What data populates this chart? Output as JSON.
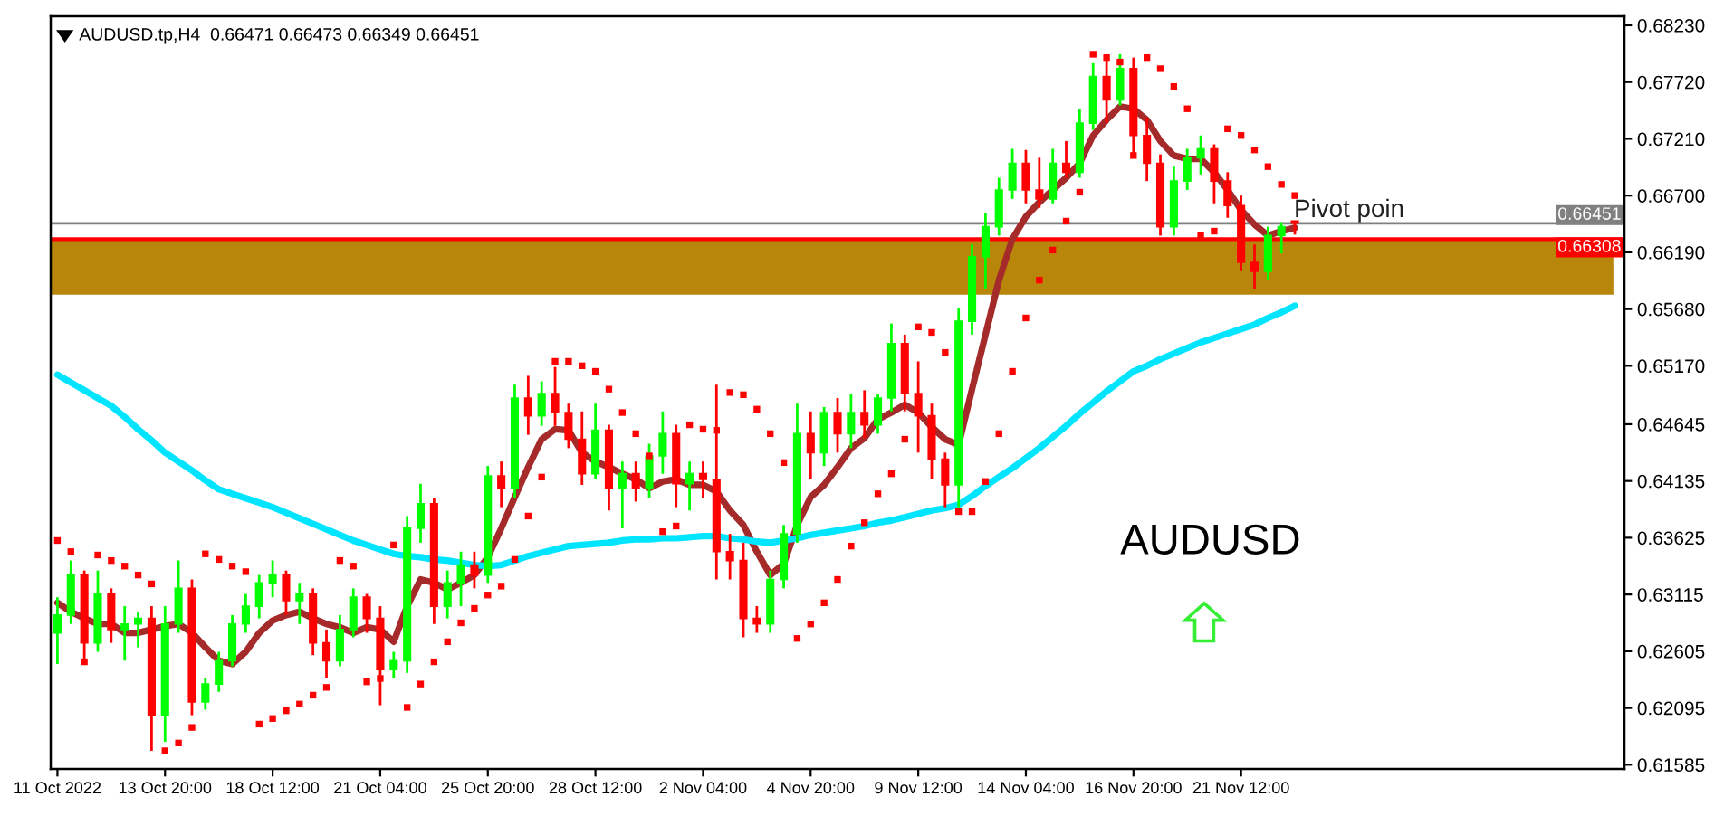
{
  "chart_data": {
    "type": "candlestick",
    "title": "AUDUSD.tp,H4  0.66471 0.66473 0.66349 0.66451",
    "categories": [
      "11 Oct 2022",
      null,
      null,
      null,
      null,
      null,
      null,
      null,
      "13 Oct 20:00",
      null,
      null,
      null,
      null,
      null,
      null,
      null,
      "18 Oct 12:00",
      null,
      null,
      null,
      null,
      null,
      null,
      null,
      "21 Oct 04:00",
      null,
      null,
      null,
      null,
      null,
      null,
      null,
      "25 Oct 20:00",
      null,
      null,
      null,
      null,
      null,
      null,
      null,
      "28 Oct 12:00",
      null,
      null,
      null,
      null,
      null,
      null,
      null,
      "2 Nov 04:00",
      null,
      null,
      null,
      null,
      null,
      null,
      null,
      "4 Nov 20:00",
      null,
      null,
      null,
      null,
      null,
      null,
      null,
      "9 Nov 12:00",
      null,
      null,
      null,
      null,
      null,
      null,
      null,
      "14 Nov 04:00",
      null,
      null,
      null,
      null,
      null,
      null,
      null,
      "16 Nov 20:00",
      null,
      null,
      null,
      null,
      null,
      null,
      null,
      "21 Nov 12:00",
      null,
      null,
      null,
      null,
      null,
      null,
      null,
      null,
      null,
      null,
      null,
      null,
      null,
      null,
      null,
      null,
      null,
      null,
      null,
      null,
      null,
      null,
      null,
      null,
      null,
      null,
      null,
      null
    ],
    "series": [
      {
        "ohlc": [
          [
            0.6277,
            0.6309,
            0.6249,
            0.6293
          ],
          [
            0.6293,
            0.6342,
            0.6285,
            0.6329
          ],
          [
            0.6329,
            0.6333,
            0.6252,
            0.6268
          ],
          [
            0.6268,
            0.6333,
            0.626,
            0.6312
          ],
          [
            0.6312,
            0.6317,
            0.6268,
            0.628
          ],
          [
            0.628,
            0.6301,
            0.6252,
            0.6285
          ],
          [
            0.6285,
            0.6296,
            0.6264,
            0.629
          ],
          [
            0.629,
            0.6301,
            0.6171,
            0.6203
          ],
          [
            0.6203,
            0.6301,
            0.6179,
            0.6285
          ],
          [
            0.6285,
            0.6342,
            0.6277,
            0.6317
          ],
          [
            0.6317,
            0.6325,
            0.6203,
            0.6215
          ],
          [
            0.6215,
            0.6236,
            0.6208,
            0.6231
          ],
          [
            0.6231,
            0.626,
            0.6224,
            0.6252
          ],
          [
            0.6252,
            0.6293,
            0.6247,
            0.6285
          ],
          [
            0.6285,
            0.6312,
            0.6277,
            0.6301
          ],
          [
            0.6301,
            0.6329,
            0.629,
            0.6322
          ],
          [
            0.6322,
            0.6342,
            0.6309,
            0.6329
          ],
          [
            0.6329,
            0.6333,
            0.6293,
            0.6306
          ],
          [
            0.6306,
            0.6322,
            0.6285,
            0.6312
          ],
          [
            0.6312,
            0.6317,
            0.6257,
            0.6268
          ],
          [
            0.6268,
            0.628,
            0.6236,
            0.6252
          ],
          [
            0.6252,
            0.6293,
            0.6247,
            0.628
          ],
          [
            0.628,
            0.6317,
            0.6273,
            0.6309
          ],
          [
            0.6309,
            0.6312,
            0.6277,
            0.629
          ],
          [
            0.629,
            0.6301,
            0.6212,
            0.6244
          ],
          [
            0.6244,
            0.626,
            0.6236,
            0.6252
          ],
          [
            0.6252,
            0.6382,
            0.6241,
            0.6371
          ],
          [
            0.6371,
            0.6411,
            0.6358,
            0.6393
          ],
          [
            0.6393,
            0.6398,
            0.6285,
            0.6301
          ],
          [
            0.6301,
            0.6333,
            0.629,
            0.6322
          ],
          [
            0.6322,
            0.635,
            0.6301,
            0.6338
          ],
          [
            0.6338,
            0.635,
            0.6317,
            0.6329
          ],
          [
            0.6329,
            0.6427,
            0.6322,
            0.6418
          ],
          [
            0.6418,
            0.6431,
            0.639,
            0.6407
          ],
          [
            0.6407,
            0.65,
            0.6398,
            0.6488
          ],
          [
            0.6488,
            0.6508,
            0.6455,
            0.6472
          ],
          [
            0.6472,
            0.6503,
            0.6463,
            0.6492
          ],
          [
            0.6492,
            0.6516,
            0.6463,
            0.6475
          ],
          [
            0.6475,
            0.6483,
            0.6443,
            0.6451
          ],
          [
            0.6451,
            0.6476,
            0.641,
            0.642
          ],
          [
            0.642,
            0.6483,
            0.6415,
            0.6459
          ],
          [
            0.6459,
            0.6464,
            0.6387,
            0.6407
          ],
          [
            0.6407,
            0.6431,
            0.6371,
            0.642
          ],
          [
            0.642,
            0.6431,
            0.6395,
            0.6407
          ],
          [
            0.6407,
            0.6447,
            0.6398,
            0.6436
          ],
          [
            0.6436,
            0.6476,
            0.642,
            0.6456
          ],
          [
            0.6456,
            0.6464,
            0.639,
            0.6411
          ],
          [
            0.6411,
            0.6431,
            0.6387,
            0.642
          ],
          [
            0.642,
            0.6431,
            0.6398,
            0.6415
          ],
          [
            0.6415,
            0.65,
            0.6325,
            0.635
          ],
          [
            0.635,
            0.6366,
            0.6325,
            0.6342
          ],
          [
            0.6342,
            0.6358,
            0.6273,
            0.629
          ],
          [
            0.629,
            0.6301,
            0.6277,
            0.6285
          ],
          [
            0.6285,
            0.6333,
            0.6277,
            0.6325
          ],
          [
            0.6325,
            0.6374,
            0.6317,
            0.6366
          ],
          [
            0.6366,
            0.6483,
            0.6358,
            0.6456
          ],
          [
            0.6456,
            0.6476,
            0.6415,
            0.6439
          ],
          [
            0.6439,
            0.648,
            0.6427,
            0.6475
          ],
          [
            0.6475,
            0.6488,
            0.6439,
            0.6456
          ],
          [
            0.6456,
            0.6492,
            0.6443,
            0.6475
          ],
          [
            0.6475,
            0.6495,
            0.6452,
            0.6464
          ],
          [
            0.6464,
            0.6492,
            0.6456,
            0.6488
          ],
          [
            0.6488,
            0.6555,
            0.6476,
            0.6537
          ],
          [
            0.6537,
            0.6545,
            0.6476,
            0.6492
          ],
          [
            0.6492,
            0.6521,
            0.6439,
            0.6472
          ],
          [
            0.6472,
            0.6483,
            0.6415,
            0.6433
          ],
          [
            0.6433,
            0.6439,
            0.639,
            0.641
          ],
          [
            0.641,
            0.6569,
            0.639,
            0.6557
          ],
          [
            0.6557,
            0.6626,
            0.6545,
            0.6615
          ],
          [
            0.6615,
            0.6654,
            0.6586,
            0.6642
          ],
          [
            0.6642,
            0.6686,
            0.6634,
            0.6675
          ],
          [
            0.6675,
            0.6712,
            0.6667,
            0.6699
          ],
          [
            0.6699,
            0.6711,
            0.6663,
            0.6675
          ],
          [
            0.6675,
            0.6704,
            0.6659,
            0.6667
          ],
          [
            0.6667,
            0.6712,
            0.6663,
            0.6699
          ],
          [
            0.6699,
            0.6719,
            0.6686,
            0.6691
          ],
          [
            0.6691,
            0.6748,
            0.6686,
            0.6735
          ],
          [
            0.6735,
            0.6789,
            0.6729,
            0.6777
          ],
          [
            0.6777,
            0.6797,
            0.6735,
            0.6756
          ],
          [
            0.6756,
            0.6797,
            0.6751,
            0.6784
          ],
          [
            0.6784,
            0.6794,
            0.6707,
            0.6724
          ],
          [
            0.6724,
            0.674,
            0.6683,
            0.6699
          ],
          [
            0.6699,
            0.6707,
            0.6634,
            0.6642
          ],
          [
            0.6642,
            0.6696,
            0.6634,
            0.6683
          ],
          [
            0.6683,
            0.6712,
            0.6675,
            0.6704
          ],
          [
            0.6704,
            0.6724,
            0.6689,
            0.6712
          ],
          [
            0.6712,
            0.6716,
            0.6663,
            0.6683
          ],
          [
            0.6683,
            0.6691,
            0.665,
            0.6661
          ],
          [
            0.6661,
            0.667,
            0.6602,
            0.661
          ],
          [
            0.661,
            0.6626,
            0.6586,
            0.6602
          ],
          [
            0.6602,
            0.6642,
            0.6594,
            0.6634
          ],
          [
            0.6634,
            0.6646,
            0.6618,
            0.6642
          ],
          [
            0.66471,
            0.66473,
            0.66349,
            0.66451
          ],
          null,
          null,
          null,
          null,
          null,
          null,
          null,
          null,
          null,
          null,
          null,
          null,
          null,
          null,
          null,
          null,
          null,
          null,
          null,
          null,
          null,
          null,
          null,
          null
        ],
        "colors": [
          "#00ff00",
          "#00ff00",
          "#ff0000",
          "#00ff00",
          "#ff0000",
          "#00ff00",
          "#00ff00",
          "#ff0000",
          "#00ff00",
          "#00ff00",
          "#ff0000",
          "#00ff00",
          "#00ff00",
          "#00ff00",
          "#00ff00",
          "#00ff00",
          "#00ff00",
          "#ff0000",
          "#00ff00",
          "#ff0000",
          "#ff0000",
          "#00ff00",
          "#00ff00",
          "#ff0000",
          "#ff0000",
          "#00ff00",
          "#00ff00",
          "#00ff00",
          "#ff0000",
          "#00ff00",
          "#00ff00",
          "#ff0000",
          "#00ff00",
          "#ff0000",
          "#00ff00",
          "#ff0000",
          "#00ff00",
          "#ff0000",
          "#ff0000",
          "#ff0000",
          "#00ff00",
          "#ff0000",
          "#00ff00",
          "#ff0000",
          "#00ff00",
          "#00ff00",
          "#ff0000",
          "#00ff00",
          "#ff0000",
          "#ff0000",
          "#ff0000",
          "#ff0000",
          "#ff0000",
          "#00ff00",
          "#00ff00",
          "#00ff00",
          "#ff0000",
          "#00ff00",
          "#ff0000",
          "#00ff00",
          "#ff0000",
          "#00ff00",
          "#00ff00",
          "#ff0000",
          "#ff0000",
          "#ff0000",
          "#ff0000",
          "#00ff00",
          "#00ff00",
          "#00ff00",
          "#00ff00",
          "#00ff00",
          "#ff0000",
          "#ff0000",
          "#00ff00",
          "#ff0000",
          "#00ff00",
          "#00ff00",
          "#ff0000",
          "#00ff00",
          "#ff0000",
          "#ff0000",
          "#ff0000",
          "#00ff00",
          "#00ff00",
          "#00ff00",
          "#ff0000",
          "#ff0000",
          "#ff0000",
          "#ff0000",
          "#00ff00",
          "#00ff00",
          "#ff0000",
          null,
          null,
          null,
          null,
          null,
          null,
          null,
          null,
          null,
          null,
          null,
          null,
          null,
          null,
          null,
          null,
          null,
          null,
          null,
          null,
          null,
          null,
          null,
          null
        ]
      },
      {
        "type": "line",
        "color": "#a52a2a",
        "values": [
          0.6304,
          0.6296,
          0.629,
          0.6285,
          0.6285,
          0.6277,
          0.6277,
          0.628,
          0.6283,
          0.6285,
          0.6277,
          0.6264,
          0.6252,
          0.6249,
          0.626,
          0.6277,
          0.6288,
          0.6293,
          0.6296,
          0.629,
          0.6285,
          0.6282,
          0.6277,
          0.6282,
          0.628,
          0.6269,
          0.6301,
          0.6325,
          0.6322,
          0.6316,
          0.6322,
          0.6329,
          0.6345,
          0.6371,
          0.6399,
          0.6426,
          0.6451,
          0.646,
          0.6459,
          0.6439,
          0.6431,
          0.6426,
          0.642,
          0.6415,
          0.6407,
          0.6413,
          0.6415,
          0.641,
          0.641,
          0.6404,
          0.6387,
          0.6374,
          0.635,
          0.6329,
          0.6339,
          0.6374,
          0.6399,
          0.641,
          0.6426,
          0.6443,
          0.6452,
          0.6469,
          0.6475,
          0.6482,
          0.6475,
          0.6462,
          0.6451,
          0.6446,
          0.6496,
          0.6545,
          0.6594,
          0.6631,
          0.6651,
          0.6664,
          0.6675,
          0.6686,
          0.6699,
          0.6724,
          0.6738,
          0.675,
          0.6748,
          0.6738,
          0.6719,
          0.6706,
          0.6703,
          0.6703,
          0.6691,
          0.6675,
          0.6657,
          0.6644,
          0.6634,
          0.6638,
          0.6641,
          null,
          null,
          null,
          null,
          null,
          null,
          null,
          null,
          null,
          null,
          null,
          null,
          null,
          null,
          null,
          null,
          null,
          null,
          null,
          null,
          null,
          null,
          null,
          null
        ]
      },
      {
        "type": "line",
        "color": "#00e5ff",
        "values": [
          0.6509,
          0.6502,
          0.6495,
          0.6488,
          0.6481,
          0.6471,
          0.646,
          0.645,
          0.6439,
          0.6431,
          0.6423,
          0.6414,
          0.6406,
          0.6402,
          0.6398,
          0.6394,
          0.639,
          0.6385,
          0.638,
          0.6375,
          0.637,
          0.6365,
          0.636,
          0.6356,
          0.6352,
          0.6348,
          0.6346,
          0.6345,
          0.6343,
          0.6342,
          0.634,
          0.6338,
          0.6337,
          0.6338,
          0.6342,
          0.6346,
          0.6349,
          0.6352,
          0.6355,
          0.6356,
          0.6357,
          0.6358,
          0.636,
          0.6361,
          0.6361,
          0.6362,
          0.6362,
          0.6363,
          0.6364,
          0.6364,
          0.6362,
          0.6361,
          0.6359,
          0.6358,
          0.636,
          0.6362,
          0.6365,
          0.6367,
          0.6369,
          0.6371,
          0.6373,
          0.6376,
          0.6378,
          0.6381,
          0.6384,
          0.6387,
          0.6389,
          0.6392,
          0.64,
          0.6409,
          0.6417,
          0.6425,
          0.6434,
          0.6443,
          0.6453,
          0.6463,
          0.6474,
          0.6484,
          0.6494,
          0.6503,
          0.6512,
          0.6517,
          0.6523,
          0.6528,
          0.6533,
          0.6538,
          0.6542,
          0.6546,
          0.655,
          0.6554,
          0.656,
          0.6565,
          0.6571,
          null,
          null,
          null,
          null,
          null,
          null,
          null,
          null,
          null,
          null,
          null,
          null,
          null,
          null,
          null,
          null,
          null,
          null,
          null,
          null,
          null,
          null,
          null,
          null
        ]
      },
      {
        "type": "scatter",
        "color": "#ff0000",
        "marker": "square",
        "values": [
          0.636,
          0.635,
          0.6251,
          0.6347,
          0.6342,
          0.6337,
          0.6329,
          0.6321,
          0.6171,
          0.6178,
          0.6192,
          0.6348,
          0.6343,
          0.6337,
          0.6332,
          0.6195,
          0.62,
          0.6207,
          0.6213,
          0.6221,
          0.6228,
          0.6342,
          0.6337,
          0.6233,
          0.6236,
          0.6356,
          0.621,
          0.6231,
          0.6251,
          0.6269,
          0.6286,
          0.6299,
          0.6311,
          0.6319,
          0.6343,
          0.6382,
          0.6417,
          0.6521,
          0.6521,
          0.6517,
          0.6512,
          0.6496,
          0.6475,
          0.6456,
          0.6436,
          0.6368,
          0.6373,
          0.6464,
          0.646,
          0.6459,
          0.6493,
          0.6491,
          0.6478,
          0.6456,
          0.643,
          0.6272,
          0.6285,
          0.6304,
          0.6325,
          0.6355,
          0.6376,
          0.6402,
          0.642,
          0.6451,
          0.6552,
          0.6547,
          0.6529,
          0.6386,
          0.6386,
          0.6413,
          0.6456,
          0.6512,
          0.656,
          0.6594,
          0.6621,
          0.6647,
          0.6673,
          0.6797,
          0.6794,
          0.679,
          0.6706,
          0.6794,
          0.6784,
          0.6768,
          0.6748,
          0.6634,
          0.6638,
          0.673,
          0.6724,
          0.6711,
          0.6696,
          0.668,
          0.667,
          null,
          null,
          null,
          null,
          null,
          null,
          null,
          null,
          null,
          null,
          null,
          null,
          null,
          null,
          null,
          null,
          null,
          null,
          null,
          null,
          null,
          null,
          null,
          null
        ]
      }
    ],
    "ylim": [
      0.61547,
      0.68311
    ],
    "yticks": [
      {
        "value": 0.6823,
        "label": "0.68230"
      },
      {
        "value": 0.6772,
        "label": "0.67720"
      },
      {
        "value": 0.6721,
        "label": "0.67210"
      },
      {
        "value": 0.667,
        "label": "0.66700"
      },
      {
        "value": 0.6619,
        "label": "0.66190"
      },
      {
        "value": 0.6568,
        "label": "0.65680"
      },
      {
        "value": 0.6517,
        "label": "0.65170"
      },
      {
        "value": 0.64645,
        "label": "0.64645"
      },
      {
        "value": 0.64135,
        "label": "0.64135"
      },
      {
        "value": 0.63625,
        "label": "0.63625"
      },
      {
        "value": 0.63115,
        "label": "0.63115"
      },
      {
        "value": 0.62605,
        "label": "0.62605"
      },
      {
        "value": 0.62095,
        "label": "0.62095"
      },
      {
        "value": 0.61585,
        "label": "0.61585"
      }
    ],
    "ref_lines": [
      {
        "axis": "y",
        "value": 0.66451,
        "label": "0.66451",
        "color": "#808080"
      },
      {
        "axis": "y",
        "value": 0.66308,
        "label": "0.66308",
        "color": "#ff0000"
      }
    ],
    "bands": [
      {
        "axis": "y",
        "from": 0.6581,
        "to": 0.663,
        "color": "#b8860b"
      }
    ],
    "annotations": [
      {
        "text": "Pivot poin",
        "y": 0.6646
      },
      "AUDUSD"
    ],
    "grid": false,
    "legend": false
  }
}
